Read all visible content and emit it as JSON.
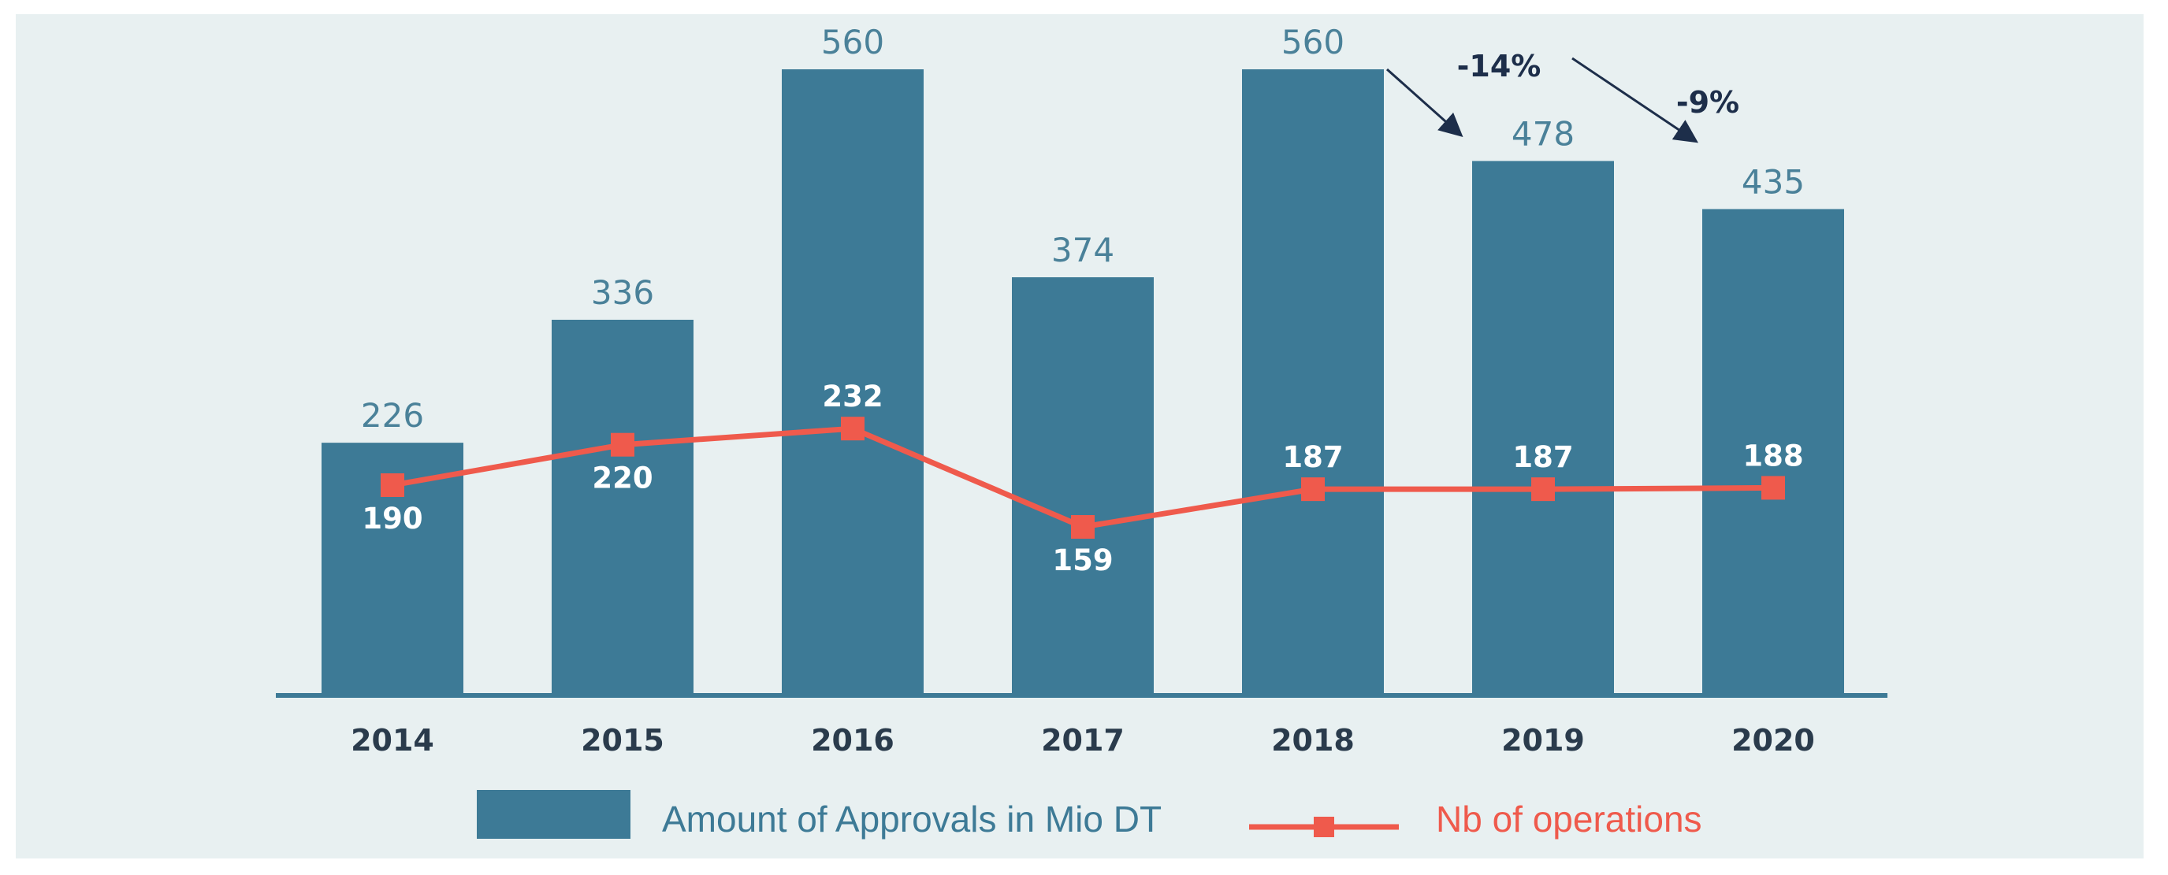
{
  "chart_data": {
    "type": "bar",
    "categories": [
      "2014",
      "2015",
      "2016",
      "2017",
      "2018",
      "2019",
      "2020"
    ],
    "series": [
      {
        "name": "Amount of Approvals in Mio DT",
        "type": "bar",
        "values": [
          226,
          336,
          560,
          374,
          560,
          478,
          435
        ]
      },
      {
        "name": "Nb of operations",
        "type": "line",
        "values": [
          190,
          220,
          232,
          159,
          187,
          187,
          188
        ]
      }
    ],
    "annotations": [
      {
        "from": "2018",
        "to": "2019",
        "text": "-14%"
      },
      {
        "from": "2019",
        "to": "2020",
        "text": "-9%"
      }
    ],
    "legend_position": "bottom",
    "colors": {
      "bar": "#3d7a96",
      "line": "#ef5a4c",
      "background": "#e8f0f1",
      "axis": "#3d7a96"
    }
  }
}
